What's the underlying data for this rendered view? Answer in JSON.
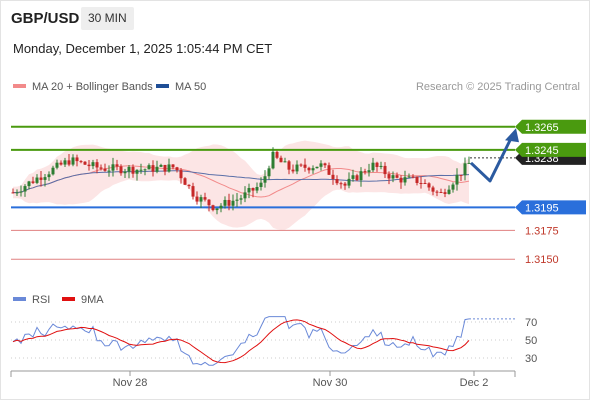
{
  "header": {
    "symbol": "GBP/USD",
    "timeframe": "30 MIN",
    "datetime": "Monday, December 1, 2025 1:05:44 PM CET"
  },
  "legend": {
    "bollinger": "MA 20 + Bollinger Bands",
    "ma50": "MA 50",
    "source": "Research © 2025 Trading Central",
    "rsi": "RSI",
    "rsi_ma": "9MA"
  },
  "colors": {
    "up": "#2e7d32",
    "down": "#c62828",
    "bb_fill": "#fbdcdc",
    "bb_line": "#f28a8a",
    "ma50": "#5a6fa8",
    "green_level": "#4a9a0f",
    "blue_level": "#2a6fdb",
    "red_level": "#e08080",
    "arrow": "#2b5aa0",
    "rsi": "#6a89d8",
    "rsi_ma": "#e01010"
  },
  "chart_data": {
    "type": "candlestick",
    "ylim": [
      1.3125,
      1.329
    ],
    "current_price": "1.3238",
    "levels": [
      {
        "label": "1.3265",
        "value": 1.3265,
        "kind": "resistance"
      },
      {
        "label": "1.3245",
        "value": 1.3245,
        "kind": "resistance"
      },
      {
        "label": "1.3195",
        "value": 1.3195,
        "kind": "pivot"
      },
      {
        "label": "1.3175",
        "value": 1.3175,
        "kind": "support"
      },
      {
        "label": "1.3150",
        "value": 1.315,
        "kind": "support"
      }
    ],
    "x_ticks": [
      "Nov 28",
      "Nov 30",
      "Dec 2"
    ],
    "forecast": {
      "low": 1.3218,
      "target": 1.3262
    },
    "rsi": {
      "ticks": [
        "70",
        "50",
        "30"
      ],
      "ylim": [
        18,
        82
      ]
    }
  }
}
